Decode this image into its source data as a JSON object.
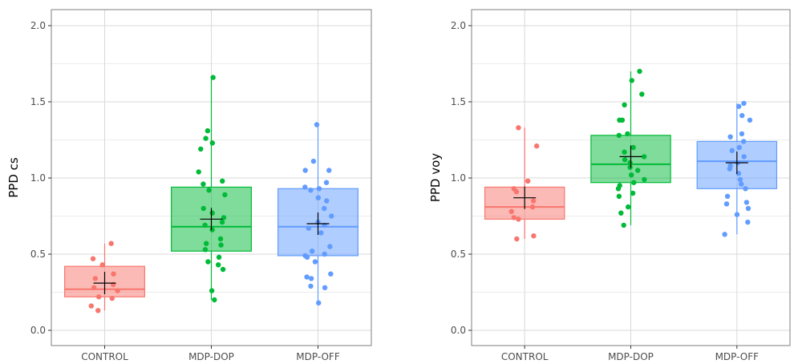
{
  "colors": {
    "CONTROL": "#F8766D",
    "MDP-DOP": "#00BA38",
    "MDP-OFF": "#619CFF",
    "grid": "#d9d9d9",
    "panel_border": "#7f7f7f",
    "mean_marker": "#000000"
  },
  "chart_data": [
    {
      "type": "boxplot",
      "title": "",
      "xlabel": "",
      "ylabel": "PPD cs",
      "ylim": [
        -0.1,
        2.1
      ],
      "yticks": [
        "0.0",
        "0.5",
        "1.0",
        "1.5",
        "2.0"
      ],
      "grid": true,
      "legend": "none",
      "categories": [
        "CONTROL",
        "MDP-DOP",
        "MDP-OFF"
      ],
      "boxes": [
        {
          "q1": 0.22,
          "median": 0.27,
          "q3": 0.42,
          "whisker_low": 0.13,
          "whisker_high": 0.57,
          "mean": 0.31
        },
        {
          "q1": 0.52,
          "median": 0.68,
          "q3": 0.94,
          "whisker_low": 0.2,
          "whisker_high": 1.66,
          "mean": 0.73
        },
        {
          "q1": 0.49,
          "median": 0.68,
          "q3": 0.93,
          "whisker_low": 0.17,
          "whisker_high": 1.35,
          "mean": 0.7
        }
      ],
      "points": [
        [
          0.57,
          0.47,
          0.43,
          0.37,
          0.34,
          0.3,
          0.28,
          0.26,
          0.22,
          0.21,
          0.16,
          0.13
        ],
        [
          1.66,
          1.31,
          1.26,
          1.23,
          1.19,
          1.04,
          0.98,
          0.96,
          0.92,
          0.89,
          0.8,
          0.77,
          0.74,
          0.71,
          0.69,
          0.66,
          0.6,
          0.57,
          0.56,
          0.53,
          0.48,
          0.45,
          0.43,
          0.4,
          0.26,
          0.2
        ],
        [
          1.35,
          1.11,
          1.05,
          1.05,
          0.97,
          0.94,
          0.93,
          0.92,
          0.87,
          0.85,
          0.8,
          0.75,
          0.71,
          0.69,
          0.67,
          0.64,
          0.55,
          0.52,
          0.5,
          0.49,
          0.48,
          0.45,
          0.37,
          0.35,
          0.34,
          0.29,
          0.28,
          0.18
        ]
      ]
    },
    {
      "type": "boxplot",
      "title": "",
      "xlabel": "",
      "ylabel": "PPD voy",
      "ylim": [
        -0.1,
        2.1
      ],
      "yticks": [
        "0.0",
        "0.5",
        "1.0",
        "1.5",
        "2.0"
      ],
      "grid": true,
      "legend": "none",
      "categories": [
        "CONTROL",
        "MDP-DOP",
        "MDP-OFF"
      ],
      "boxes": [
        {
          "q1": 0.73,
          "median": 0.81,
          "q3": 0.94,
          "whisker_low": 0.6,
          "whisker_high": 1.33,
          "mean": 0.87
        },
        {
          "q1": 0.97,
          "median": 1.09,
          "q3": 1.28,
          "whisker_low": 0.69,
          "whisker_high": 1.7,
          "mean": 1.14
        },
        {
          "q1": 0.93,
          "median": 1.11,
          "q3": 1.24,
          "whisker_low": 0.63,
          "whisker_high": 1.49,
          "mean": 1.1
        }
      ],
      "points": [
        [
          1.33,
          1.21,
          0.98,
          0.93,
          0.91,
          0.85,
          0.81,
          0.78,
          0.74,
          0.73,
          0.62,
          0.6
        ],
        [
          1.7,
          1.64,
          1.55,
          1.48,
          1.38,
          1.38,
          1.29,
          1.28,
          1.2,
          1.17,
          1.14,
          1.12,
          1.1,
          1.07,
          1.05,
          1.02,
          0.99,
          0.97,
          0.95,
          0.93,
          0.9,
          0.88,
          0.81,
          0.77,
          0.69
        ],
        [
          1.49,
          1.47,
          1.41,
          1.38,
          1.29,
          1.27,
          1.24,
          1.2,
          1.18,
          1.14,
          1.1,
          1.08,
          1.06,
          1.03,
          0.99,
          0.96,
          0.93,
          0.88,
          0.84,
          0.83,
          0.8,
          0.76,
          0.71,
          0.63
        ]
      ]
    }
  ]
}
